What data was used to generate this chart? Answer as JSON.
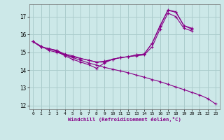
{
  "xlabel": "Windchill (Refroidissement éolien,°C)",
  "background_color": "#cce8e8",
  "grid_color": "#aacccc",
  "line_color": "#880088",
  "xlim": [
    -0.5,
    23.5
  ],
  "ylim": [
    11.8,
    17.7
  ],
  "yticks": [
    12,
    13,
    14,
    15,
    16,
    17
  ],
  "xticks": [
    0,
    1,
    2,
    3,
    4,
    5,
    6,
    7,
    8,
    9,
    10,
    11,
    12,
    13,
    14,
    15,
    16,
    17,
    18,
    19,
    20,
    21,
    22,
    23
  ],
  "series": [
    {
      "x": [
        0,
        1,
        2,
        3,
        4,
        5,
        6,
        7,
        8,
        9,
        10,
        11,
        12,
        13,
        14,
        15,
        16,
        17,
        18,
        19,
        20,
        21,
        22,
        23
      ],
      "y": [
        15.6,
        15.35,
        15.1,
        15.0,
        14.85,
        14.7,
        14.55,
        14.4,
        14.28,
        14.15,
        14.05,
        13.95,
        13.85,
        13.72,
        13.6,
        13.47,
        13.35,
        13.2,
        13.05,
        12.9,
        12.75,
        12.6,
        12.4,
        12.1
      ]
    },
    {
      "x": [
        0,
        1,
        2,
        3,
        4,
        5,
        6,
        7,
        8,
        9,
        10,
        11,
        12,
        13,
        14,
        15,
        16,
        17,
        18,
        19,
        20
      ],
      "y": [
        15.6,
        15.3,
        15.2,
        15.05,
        14.8,
        14.6,
        14.45,
        14.3,
        14.1,
        14.4,
        14.6,
        14.7,
        14.75,
        14.8,
        14.85,
        15.3,
        16.3,
        17.2,
        17.0,
        16.35,
        16.2
      ]
    },
    {
      "x": [
        0,
        1,
        2,
        3,
        4,
        5,
        6,
        7,
        8,
        9,
        10,
        11,
        12,
        13,
        14,
        15,
        16,
        17,
        18,
        19,
        20
      ],
      "y": [
        15.6,
        15.3,
        15.2,
        15.1,
        14.85,
        14.75,
        14.65,
        14.55,
        14.45,
        14.5,
        14.6,
        14.7,
        14.75,
        14.85,
        14.9,
        15.5,
        16.5,
        17.35,
        17.25,
        16.5,
        16.3
      ]
    },
    {
      "x": [
        0,
        1,
        2,
        3,
        4,
        5,
        6,
        7,
        8,
        9,
        10,
        11,
        12,
        13,
        14,
        15,
        16,
        17,
        18,
        19,
        20
      ],
      "y": [
        15.6,
        15.3,
        15.2,
        15.1,
        14.9,
        14.8,
        14.65,
        14.55,
        14.45,
        14.45,
        14.6,
        14.7,
        14.75,
        14.85,
        14.9,
        15.5,
        16.45,
        17.38,
        17.28,
        16.5,
        16.35
      ]
    }
  ],
  "marker": "+"
}
